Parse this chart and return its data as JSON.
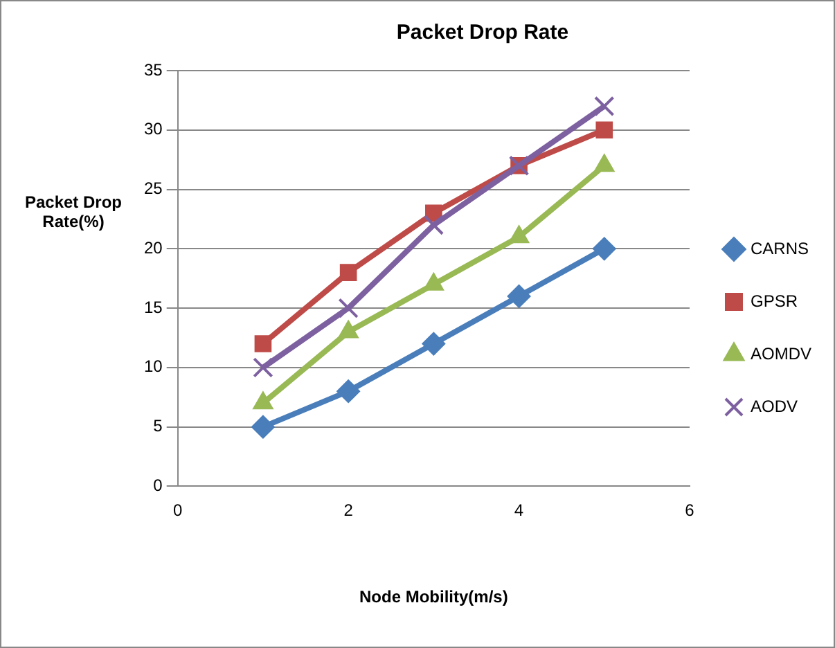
{
  "chart_data": {
    "type": "line",
    "title": "Packet Drop Rate",
    "xlabel": "Node Mobility(m/s)",
    "ylabel": "Packet Drop Rate(%)",
    "x": [
      1,
      2,
      3,
      4,
      5
    ],
    "series": [
      {
        "name": "CARNS",
        "color": "#4a7ebb",
        "marker": "diamond",
        "values": [
          5,
          8,
          12,
          16,
          20
        ]
      },
      {
        "name": "GPSR",
        "color": "#be4b48",
        "marker": "square",
        "values": [
          12,
          18,
          23,
          27,
          30
        ]
      },
      {
        "name": "AOMDV",
        "color": "#98b954",
        "marker": "triangle",
        "values": [
          7,
          13,
          17,
          21,
          27
        ]
      },
      {
        "name": "AODV",
        "color": "#7d60a0",
        "marker": "cross",
        "values": [
          10,
          15,
          22,
          27,
          32
        ]
      }
    ],
    "xlim": [
      0,
      6
    ],
    "xticks": [
      0,
      2,
      4,
      6
    ],
    "ylim": [
      0,
      35
    ],
    "yticks": [
      0,
      5,
      10,
      15,
      20,
      25,
      30,
      35
    ],
    "grid": "y",
    "legend": "right",
    "line_style": "solid"
  }
}
